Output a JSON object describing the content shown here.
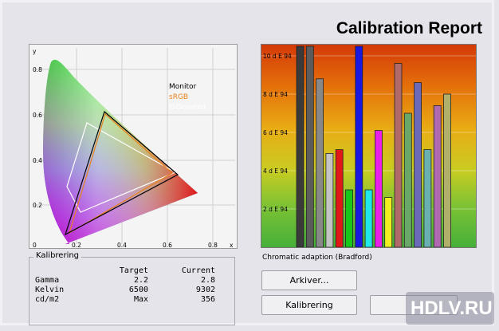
{
  "report": {
    "title": "Calibration Report"
  },
  "cie_plot": {
    "axis_x": "x",
    "axis_y": "y",
    "y_ticks": [
      "0.8",
      "0.6",
      "0.4",
      "0.2",
      "0"
    ],
    "x_ticks": [
      "0.2",
      "0.4",
      "0.6",
      "0.8"
    ],
    "legend": {
      "monitor": "Monitor",
      "srgb": "sRGB",
      "isocoated": "ISOcoated"
    },
    "colors": {
      "monitor": "#000000",
      "srgb": "#e8821e",
      "isocoated": "#ffffff"
    }
  },
  "chart_data": {
    "type": "bar",
    "y_ticks": [
      "10 d E 94",
      "8 d E 94",
      "6 d E 94",
      "4 d E 94",
      "2 d E 94"
    ],
    "ylim": [
      0,
      10.5
    ],
    "bars": [
      {
        "value": 10.5,
        "color": "#3a3a3a"
      },
      {
        "value": 10.5,
        "color": "#5c5c5c"
      },
      {
        "value": 8.8,
        "color": "#888888"
      },
      {
        "value": 4.9,
        "color": "#c4c4c4"
      },
      {
        "value": 5.1,
        "color": "#e01818"
      },
      {
        "value": 3.0,
        "color": "#18c818"
      },
      {
        "value": 10.5,
        "color": "#1818e0"
      },
      {
        "value": 3.0,
        "color": "#20e8e8"
      },
      {
        "value": 6.1,
        "color": "#e820e8"
      },
      {
        "value": 2.6,
        "color": "#f0f020"
      },
      {
        "value": 9.6,
        "color": "#b06a6a"
      },
      {
        "value": 7.0,
        "color": "#6aa86a"
      },
      {
        "value": 8.6,
        "color": "#6a6ab8"
      },
      {
        "value": 5.1,
        "color": "#6ab0b0"
      },
      {
        "value": 7.4,
        "color": "#b06ab0"
      },
      {
        "value": 8.0,
        "color": "#b0b06a"
      }
    ]
  },
  "chromatic_label": "Chromatic adaption (Bradford)",
  "kalibrering": {
    "group_title": "Kalibrering",
    "headers": [
      "",
      "Target",
      "Current"
    ],
    "rows": [
      {
        "label": "Gamma",
        "target": "2.2",
        "current": "2.8"
      },
      {
        "label": "Kelvin",
        "target": "6500",
        "current": "9302"
      },
      {
        "label": "cd/m2",
        "target": "Max",
        "current": "356"
      }
    ]
  },
  "buttons": {
    "archive": "Arkiver...",
    "calibrate": "Kalibrering"
  },
  "watermark": {
    "brand": "HDLV.RU"
  }
}
